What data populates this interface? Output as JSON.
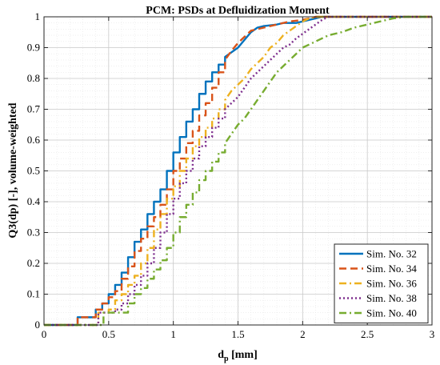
{
  "chart_data": {
    "type": "line",
    "title": "PCM: PSDs at Defluidization Moment",
    "xlabel": "d",
    "xlabel_sub": "p",
    "xlabel_unit": " [mm]",
    "ylabel": "Q3(dp) [-], volume-weighted",
    "xlim": [
      0,
      3
    ],
    "ylim": [
      0,
      1
    ],
    "x_ticks": [
      "0",
      "0.5",
      "1",
      "1.5",
      "2",
      "2.5",
      "3"
    ],
    "y_ticks": [
      "0",
      "0.1",
      "0.2",
      "0.3",
      "0.4",
      "0.5",
      "0.6",
      "0.7",
      "0.8",
      "0.9",
      "1"
    ],
    "grid": true,
    "legend_position": "bottom-right",
    "step": true,
    "series": [
      {
        "name": "Sim. No. 32",
        "color": "#0072BD",
        "dash": "solid",
        "points": [
          [
            0,
            0
          ],
          [
            0.26,
            0
          ],
          [
            0.26,
            0.025
          ],
          [
            0.4,
            0.025
          ],
          [
            0.4,
            0.05
          ],
          [
            0.45,
            0.05
          ],
          [
            0.45,
            0.07
          ],
          [
            0.5,
            0.07
          ],
          [
            0.5,
            0.1
          ],
          [
            0.55,
            0.1
          ],
          [
            0.55,
            0.13
          ],
          [
            0.6,
            0.13
          ],
          [
            0.6,
            0.17
          ],
          [
            0.65,
            0.17
          ],
          [
            0.65,
            0.22
          ],
          [
            0.7,
            0.22
          ],
          [
            0.7,
            0.27
          ],
          [
            0.75,
            0.27
          ],
          [
            0.75,
            0.31
          ],
          [
            0.8,
            0.31
          ],
          [
            0.8,
            0.36
          ],
          [
            0.85,
            0.36
          ],
          [
            0.85,
            0.4
          ],
          [
            0.9,
            0.4
          ],
          [
            0.9,
            0.44
          ],
          [
            0.95,
            0.44
          ],
          [
            0.95,
            0.5
          ],
          [
            1.0,
            0.5
          ],
          [
            1.0,
            0.56
          ],
          [
            1.05,
            0.56
          ],
          [
            1.05,
            0.61
          ],
          [
            1.1,
            0.61
          ],
          [
            1.1,
            0.66
          ],
          [
            1.15,
            0.66
          ],
          [
            1.15,
            0.7
          ],
          [
            1.2,
            0.7
          ],
          [
            1.2,
            0.75
          ],
          [
            1.25,
            0.75
          ],
          [
            1.25,
            0.79
          ],
          [
            1.3,
            0.79
          ],
          [
            1.3,
            0.82
          ],
          [
            1.35,
            0.82
          ],
          [
            1.35,
            0.845
          ],
          [
            1.4,
            0.845
          ],
          [
            1.4,
            0.87
          ],
          [
            1.5,
            0.9
          ],
          [
            1.55,
            0.925
          ],
          [
            1.6,
            0.95
          ],
          [
            1.65,
            0.965
          ],
          [
            1.7,
            0.97
          ],
          [
            1.8,
            0.975
          ],
          [
            1.85,
            0.98
          ],
          [
            1.95,
            0.98
          ],
          [
            2.0,
            0.985
          ],
          [
            2.05,
            0.99
          ],
          [
            2.1,
            0.995
          ],
          [
            2.15,
            1.0
          ],
          [
            3.0,
            1.0
          ]
        ]
      },
      {
        "name": "Sim. No. 34",
        "color": "#D95319",
        "dash": "dashed",
        "points": [
          [
            0,
            0
          ],
          [
            0.26,
            0
          ],
          [
            0.26,
            0.025
          ],
          [
            0.4,
            0.025
          ],
          [
            0.4,
            0.05
          ],
          [
            0.45,
            0.05
          ],
          [
            0.45,
            0.07
          ],
          [
            0.5,
            0.07
          ],
          [
            0.5,
            0.09
          ],
          [
            0.55,
            0.09
          ],
          [
            0.55,
            0.11
          ],
          [
            0.6,
            0.11
          ],
          [
            0.6,
            0.15
          ],
          [
            0.65,
            0.15
          ],
          [
            0.65,
            0.19
          ],
          [
            0.7,
            0.19
          ],
          [
            0.7,
            0.24
          ],
          [
            0.75,
            0.24
          ],
          [
            0.75,
            0.28
          ],
          [
            0.8,
            0.28
          ],
          [
            0.8,
            0.32
          ],
          [
            0.85,
            0.32
          ],
          [
            0.85,
            0.35
          ],
          [
            0.9,
            0.35
          ],
          [
            0.9,
            0.39
          ],
          [
            0.95,
            0.39
          ],
          [
            0.95,
            0.44
          ],
          [
            1.0,
            0.44
          ],
          [
            1.0,
            0.5
          ],
          [
            1.05,
            0.5
          ],
          [
            1.05,
            0.54
          ],
          [
            1.1,
            0.54
          ],
          [
            1.1,
            0.59
          ],
          [
            1.15,
            0.59
          ],
          [
            1.15,
            0.63
          ],
          [
            1.2,
            0.63
          ],
          [
            1.2,
            0.68
          ],
          [
            1.25,
            0.68
          ],
          [
            1.25,
            0.72
          ],
          [
            1.3,
            0.72
          ],
          [
            1.3,
            0.77
          ],
          [
            1.35,
            0.77
          ],
          [
            1.35,
            0.82
          ],
          [
            1.4,
            0.82
          ],
          [
            1.4,
            0.86
          ],
          [
            1.45,
            0.89
          ],
          [
            1.5,
            0.915
          ],
          [
            1.55,
            0.935
          ],
          [
            1.6,
            0.955
          ],
          [
            1.7,
            0.965
          ],
          [
            1.8,
            0.975
          ],
          [
            1.9,
            0.985
          ],
          [
            2.0,
            0.99
          ],
          [
            2.1,
            1.0
          ],
          [
            3.0,
            1.0
          ]
        ]
      },
      {
        "name": "Sim. No. 36",
        "color": "#EDB120",
        "dash": "dashdot",
        "points": [
          [
            0,
            0
          ],
          [
            0.42,
            0
          ],
          [
            0.42,
            0.04
          ],
          [
            0.5,
            0.04
          ],
          [
            0.5,
            0.05
          ],
          [
            0.55,
            0.05
          ],
          [
            0.55,
            0.08
          ],
          [
            0.6,
            0.08
          ],
          [
            0.6,
            0.1
          ],
          [
            0.65,
            0.1
          ],
          [
            0.65,
            0.13
          ],
          [
            0.7,
            0.13
          ],
          [
            0.7,
            0.16
          ],
          [
            0.75,
            0.16
          ],
          [
            0.75,
            0.2
          ],
          [
            0.8,
            0.2
          ],
          [
            0.8,
            0.25
          ],
          [
            0.85,
            0.25
          ],
          [
            0.85,
            0.31
          ],
          [
            0.9,
            0.31
          ],
          [
            0.9,
            0.36
          ],
          [
            0.95,
            0.36
          ],
          [
            0.95,
            0.41
          ],
          [
            1.0,
            0.41
          ],
          [
            1.0,
            0.45
          ],
          [
            1.05,
            0.45
          ],
          [
            1.05,
            0.5
          ],
          [
            1.1,
            0.5
          ],
          [
            1.1,
            0.54
          ],
          [
            1.15,
            0.54
          ],
          [
            1.15,
            0.58
          ],
          [
            1.2,
            0.58
          ],
          [
            1.2,
            0.61
          ],
          [
            1.25,
            0.61
          ],
          [
            1.25,
            0.64
          ],
          [
            1.3,
            0.64
          ],
          [
            1.3,
            0.67
          ],
          [
            1.35,
            0.67
          ],
          [
            1.35,
            0.7
          ],
          [
            1.4,
            0.7
          ],
          [
            1.4,
            0.73
          ],
          [
            1.45,
            0.76
          ],
          [
            1.5,
            0.78
          ],
          [
            1.55,
            0.8
          ],
          [
            1.6,
            0.83
          ],
          [
            1.65,
            0.85
          ],
          [
            1.7,
            0.87
          ],
          [
            1.75,
            0.9
          ],
          [
            1.8,
            0.915
          ],
          [
            1.85,
            0.94
          ],
          [
            1.9,
            0.955
          ],
          [
            1.95,
            0.97
          ],
          [
            2.0,
            0.985
          ],
          [
            2.05,
            0.995
          ],
          [
            2.1,
            1.0
          ],
          [
            3.0,
            1.0
          ]
        ]
      },
      {
        "name": "Sim. No. 38",
        "color": "#7E2F8E",
        "dash": "dotted",
        "points": [
          [
            0,
            0
          ],
          [
            0.42,
            0
          ],
          [
            0.42,
            0.04
          ],
          [
            0.55,
            0.04
          ],
          [
            0.55,
            0.05
          ],
          [
            0.6,
            0.05
          ],
          [
            0.6,
            0.07
          ],
          [
            0.65,
            0.07
          ],
          [
            0.65,
            0.1
          ],
          [
            0.7,
            0.1
          ],
          [
            0.7,
            0.13
          ],
          [
            0.75,
            0.13
          ],
          [
            0.75,
            0.16
          ],
          [
            0.8,
            0.16
          ],
          [
            0.8,
            0.2
          ],
          [
            0.85,
            0.2
          ],
          [
            0.85,
            0.25
          ],
          [
            0.9,
            0.25
          ],
          [
            0.9,
            0.3
          ],
          [
            0.95,
            0.3
          ],
          [
            0.95,
            0.36
          ],
          [
            1.0,
            0.36
          ],
          [
            1.0,
            0.41
          ],
          [
            1.05,
            0.41
          ],
          [
            1.05,
            0.46
          ],
          [
            1.1,
            0.46
          ],
          [
            1.1,
            0.5
          ],
          [
            1.15,
            0.5
          ],
          [
            1.15,
            0.54
          ],
          [
            1.2,
            0.54
          ],
          [
            1.2,
            0.58
          ],
          [
            1.25,
            0.58
          ],
          [
            1.25,
            0.61
          ],
          [
            1.3,
            0.61
          ],
          [
            1.3,
            0.64
          ],
          [
            1.35,
            0.64
          ],
          [
            1.35,
            0.67
          ],
          [
            1.4,
            0.67
          ],
          [
            1.4,
            0.7
          ],
          [
            1.45,
            0.72
          ],
          [
            1.5,
            0.74
          ],
          [
            1.55,
            0.77
          ],
          [
            1.6,
            0.8
          ],
          [
            1.65,
            0.82
          ],
          [
            1.7,
            0.84
          ],
          [
            1.75,
            0.86
          ],
          [
            1.8,
            0.88
          ],
          [
            1.85,
            0.9
          ],
          [
            1.9,
            0.91
          ],
          [
            1.95,
            0.93
          ],
          [
            2.0,
            0.945
          ],
          [
            2.05,
            0.96
          ],
          [
            2.1,
            0.975
          ],
          [
            2.15,
            0.99
          ],
          [
            2.2,
            1.0
          ],
          [
            3.0,
            1.0
          ]
        ]
      },
      {
        "name": "Sim. No. 40",
        "color": "#77AC30",
        "dash": "dashdot",
        "points": [
          [
            0,
            0
          ],
          [
            0.46,
            0
          ],
          [
            0.46,
            0.04
          ],
          [
            0.65,
            0.04
          ],
          [
            0.65,
            0.07
          ],
          [
            0.7,
            0.07
          ],
          [
            0.7,
            0.1
          ],
          [
            0.75,
            0.1
          ],
          [
            0.75,
            0.12
          ],
          [
            0.8,
            0.12
          ],
          [
            0.8,
            0.15
          ],
          [
            0.85,
            0.15
          ],
          [
            0.85,
            0.18
          ],
          [
            0.9,
            0.18
          ],
          [
            0.9,
            0.21
          ],
          [
            0.95,
            0.21
          ],
          [
            0.95,
            0.25
          ],
          [
            1.0,
            0.25
          ],
          [
            1.0,
            0.3
          ],
          [
            1.05,
            0.3
          ],
          [
            1.05,
            0.35
          ],
          [
            1.1,
            0.35
          ],
          [
            1.1,
            0.39
          ],
          [
            1.15,
            0.39
          ],
          [
            1.15,
            0.43
          ],
          [
            1.2,
            0.43
          ],
          [
            1.2,
            0.47
          ],
          [
            1.25,
            0.47
          ],
          [
            1.25,
            0.5
          ],
          [
            1.3,
            0.5
          ],
          [
            1.3,
            0.53
          ],
          [
            1.35,
            0.53
          ],
          [
            1.35,
            0.56
          ],
          [
            1.4,
            0.56
          ],
          [
            1.4,
            0.59
          ],
          [
            1.45,
            0.62
          ],
          [
            1.5,
            0.65
          ],
          [
            1.55,
            0.67
          ],
          [
            1.6,
            0.7
          ],
          [
            1.65,
            0.73
          ],
          [
            1.7,
            0.76
          ],
          [
            1.75,
            0.79
          ],
          [
            1.8,
            0.82
          ],
          [
            1.85,
            0.84
          ],
          [
            1.9,
            0.86
          ],
          [
            1.95,
            0.88
          ],
          [
            2.0,
            0.9
          ],
          [
            2.05,
            0.91
          ],
          [
            2.1,
            0.92
          ],
          [
            2.15,
            0.93
          ],
          [
            2.2,
            0.94
          ],
          [
            2.3,
            0.95
          ],
          [
            2.4,
            0.965
          ],
          [
            2.5,
            0.975
          ],
          [
            2.6,
            0.985
          ],
          [
            2.7,
            0.995
          ],
          [
            2.8,
            1.0
          ],
          [
            3.0,
            1.0
          ]
        ]
      }
    ]
  }
}
